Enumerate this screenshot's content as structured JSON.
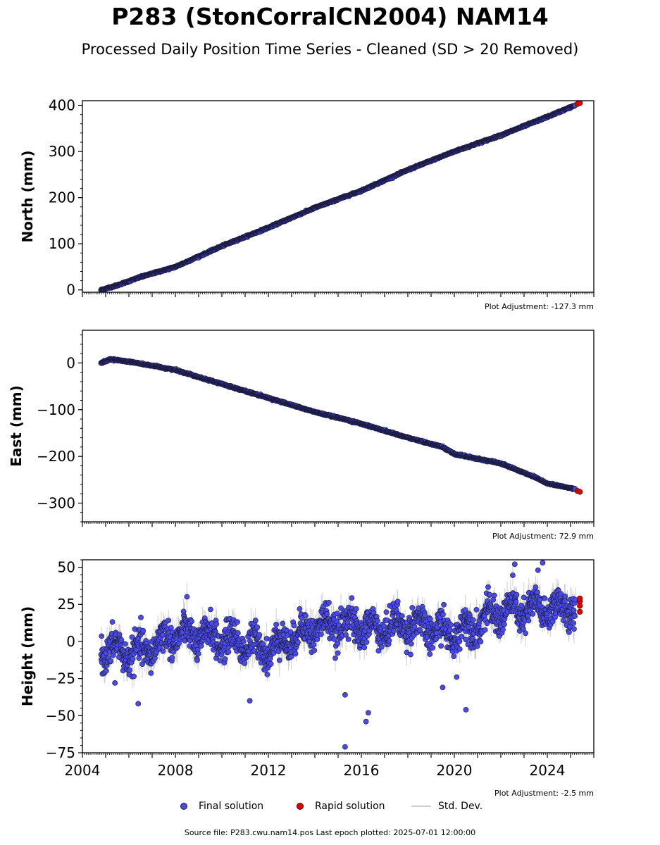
{
  "figure": {
    "title": "P283 (StonCorralCN2004) NAM14",
    "subtitle": "Processed Daily Position Time Series - Cleaned (SD > 20 Removed)",
    "source_line": "Source file: P283.cwu.nam14.pos  Last epoch plotted: 2025-07-01 12:00:00"
  },
  "legend": {
    "final_label": "Final solution",
    "rapid_label": "Rapid solution",
    "sd_label": "Std. Dev."
  },
  "colors": {
    "final": "#4a4ae8",
    "final_edge": "#1a1a3a",
    "rapid": "#e00000",
    "sd": "#bbbbbb"
  },
  "chart_data": [
    {
      "type": "scatter",
      "panel": "north",
      "ylabel": "North (mm)",
      "adjustment": "Plot Adjustment: -127.3 mm",
      "xlim": [
        2004,
        2026
      ],
      "ylim": [
        -5,
        410
      ],
      "yticks": [
        0,
        100,
        200,
        300,
        400
      ],
      "ytick_labels": [
        "0",
        "100",
        "200",
        "300",
        "400"
      ],
      "series": [
        {
          "name": "Final solution",
          "x": [
            2004.8,
            2005.5,
            2006.5,
            2008.0,
            2010.0,
            2012.0,
            2014.0,
            2016.0,
            2018.0,
            2020.0,
            2022.0,
            2024.0,
            2025.2
          ],
          "y": [
            0,
            10,
            28,
            50,
            95,
            135,
            178,
            215,
            260,
            300,
            335,
            375,
            400
          ]
        },
        {
          "name": "Rapid solution",
          "x": [
            2025.3,
            2025.4
          ],
          "y": [
            403,
            405
          ]
        }
      ]
    },
    {
      "type": "scatter",
      "panel": "east",
      "ylabel": "East (mm)",
      "adjustment": "Plot Adjustment: 72.9 mm",
      "xlim": [
        2004,
        2026
      ],
      "ylim": [
        -340,
        70
      ],
      "yticks": [
        0,
        -100,
        -200,
        -300
      ],
      "ytick_labels": [
        "0",
        "−100",
        "−200",
        "−300"
      ],
      "series": [
        {
          "name": "Final solution",
          "x": [
            2004.8,
            2005.2,
            2006.0,
            2008.0,
            2010.0,
            2012.0,
            2014.0,
            2016.0,
            2018.0,
            2019.5,
            2020.0,
            2022.0,
            2023.5,
            2024.0,
            2025.2
          ],
          "y": [
            0,
            8,
            3,
            -15,
            -45,
            -75,
            -105,
            -130,
            -160,
            -180,
            -195,
            -215,
            -245,
            -258,
            -270
          ]
        },
        {
          "name": "Rapid solution",
          "x": [
            2025.3,
            2025.4
          ],
          "y": [
            -274,
            -276
          ]
        }
      ]
    },
    {
      "type": "scatter",
      "panel": "height",
      "ylabel": "Height (mm)",
      "adjustment": "Plot Adjustment: -2.5 mm",
      "xlim": [
        2004,
        2026
      ],
      "ylim": [
        -75,
        55
      ],
      "yticks": [
        50,
        25,
        0,
        -25,
        -50,
        -75
      ],
      "ytick_labels": [
        "50",
        "25",
        "0",
        "−25",
        "−50",
        "−75"
      ],
      "xticks": [
        2004,
        2008,
        2012,
        2016,
        2020,
        2024
      ],
      "xtick_labels": [
        "2004",
        "2008",
        "2012",
        "2016",
        "2020",
        "2024"
      ],
      "outliers": {
        "x": [
          2005.4,
          2006.4,
          2011.2,
          2015.3,
          2015.3,
          2016.2,
          2016.3,
          2019.5,
          2020.1,
          2020.5,
          2022.6,
          2023.6,
          2023.8
        ],
        "y": [
          -28,
          -42,
          -40,
          -36,
          -71,
          -54,
          -48,
          -31,
          -24,
          -46,
          52,
          48,
          53
        ]
      },
      "series": [
        {
          "name": "Final solution",
          "x": [
            2004.8,
            2006.5,
            2008.0,
            2010.0,
            2012.0,
            2014.0,
            2015.5,
            2016.5,
            2018.0,
            2020.0,
            2022.0,
            2024.0,
            2025.2
          ],
          "y": [
            -5,
            -8,
            5,
            2,
            -5,
            10,
            12,
            8,
            12,
            5,
            20,
            22,
            22
          ]
        },
        {
          "name": "Rapid solution",
          "x": [
            2025.4,
            2025.4,
            2025.4,
            2025.4
          ],
          "y": [
            20,
            24,
            27,
            29
          ]
        }
      ]
    }
  ]
}
